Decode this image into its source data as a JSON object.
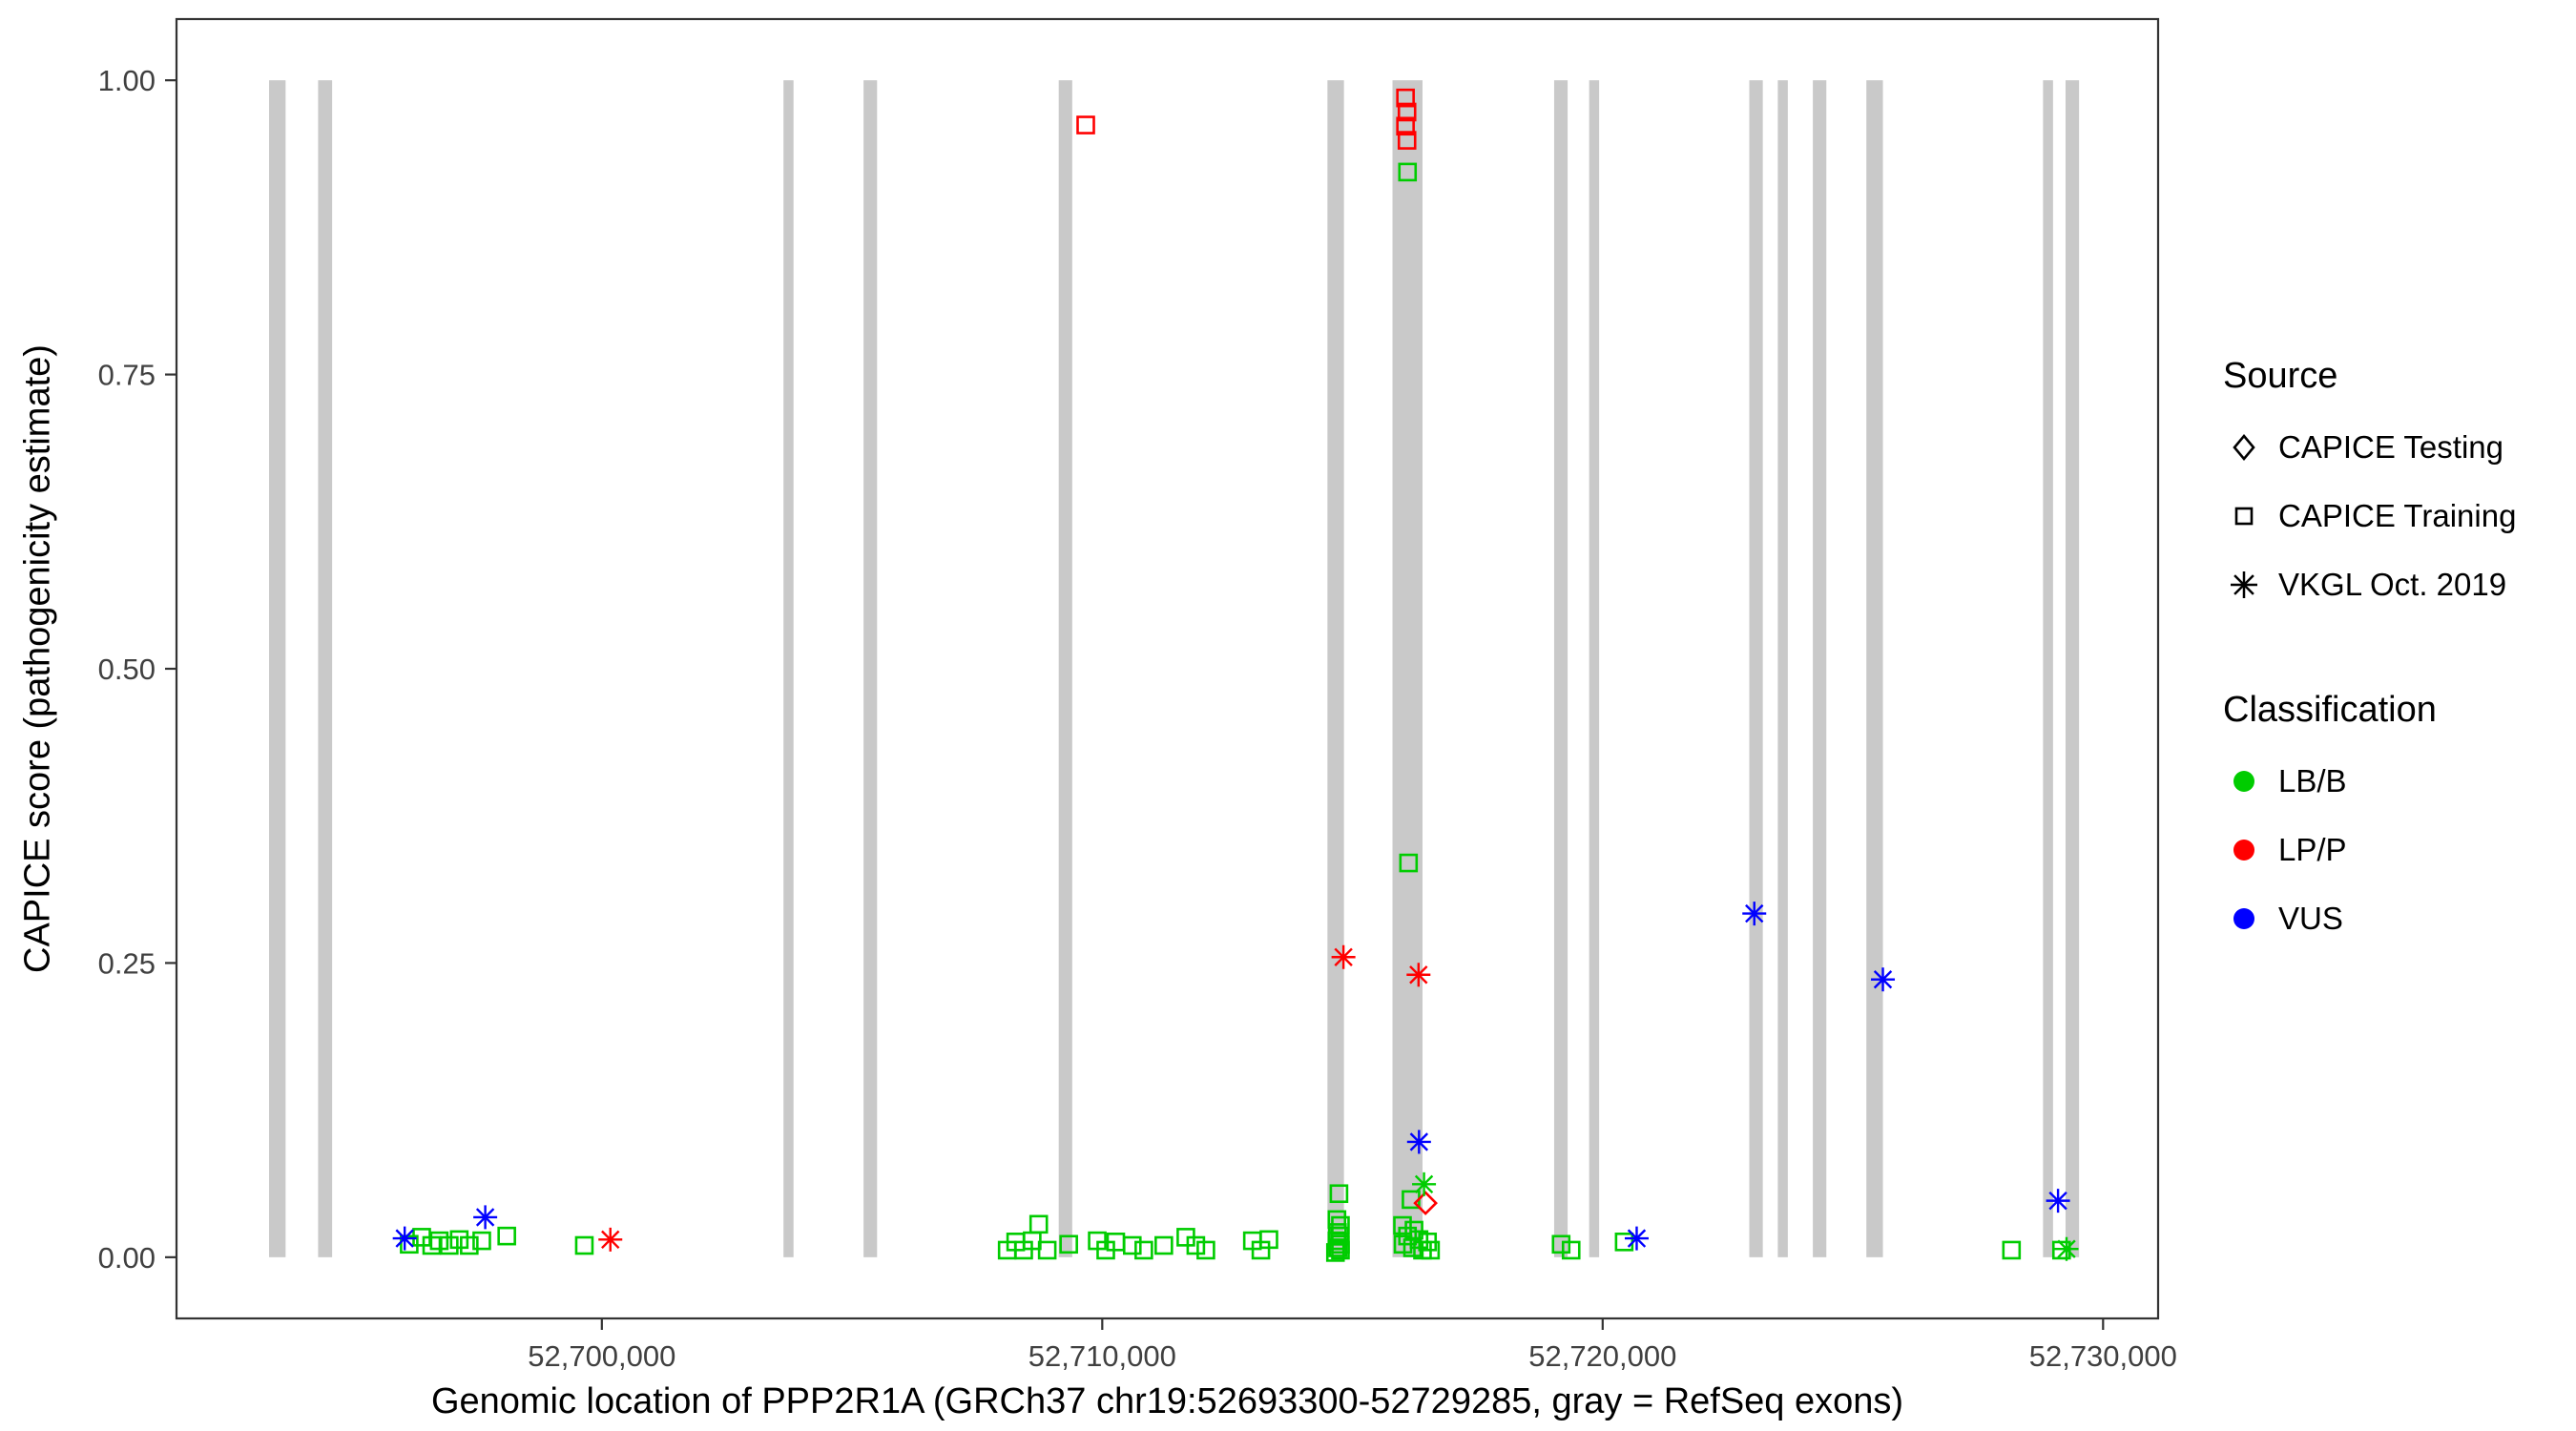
{
  "chart_data": {
    "type": "scatter",
    "title": "",
    "xlabel": "Genomic location of PPP2R1A (GRCh37 chr19:52693300-52729285, gray = RefSeq exons)",
    "ylabel": "CAPICE score (pathogenicity estimate)",
    "grid": "off",
    "legend_position": "right",
    "x_axis": {
      "domain": [
        52691500,
        52731100
      ],
      "ticks": [
        {
          "value": 52700000,
          "label": "52,700,000"
        },
        {
          "value": 52710000,
          "label": "52,710,000"
        },
        {
          "value": 52720000,
          "label": "52,720,000"
        },
        {
          "value": 52730000,
          "label": "52,730,000"
        }
      ]
    },
    "y_axis": {
      "domain": [
        -0.052,
        1.052
      ],
      "ticks": [
        {
          "value": 0.0,
          "label": "0.00"
        },
        {
          "value": 0.25,
          "label": "0.25"
        },
        {
          "value": 0.5,
          "label": "0.50"
        },
        {
          "value": 0.75,
          "label": "0.75"
        },
        {
          "value": 1.0,
          "label": "1.00"
        }
      ]
    },
    "colors": {
      "exon": "#c9c9c9",
      "panel_border": "#333333",
      "tick_text": "#404040",
      "lb_b": "#00cc00",
      "lp_p": "#ff0000",
      "vus": "#0000ff"
    },
    "exons_note": "gray = RefSeq exons",
    "exons": [
      [
        52693350,
        52693680
      ],
      [
        52694330,
        52694610
      ],
      [
        52703630,
        52703830
      ],
      [
        52705230,
        52705500
      ],
      [
        52709130,
        52709400
      ],
      [
        52714500,
        52714830
      ],
      [
        52715800,
        52716400
      ],
      [
        52719030,
        52719300
      ],
      [
        52719730,
        52719930
      ],
      [
        52722930,
        52723200
      ],
      [
        52723500,
        52723700
      ],
      [
        52724200,
        52724470
      ],
      [
        52725270,
        52725600
      ],
      [
        52728800,
        52729000
      ],
      [
        52729250,
        52729520
      ]
    ],
    "series": [
      {
        "name": "LB/B - CAPICE Training",
        "classification": "LB/B",
        "source": "CAPICE Training",
        "shape": "square",
        "color": "#00cc00",
        "points": [
          [
            52696150,
            0.011
          ],
          [
            52696400,
            0.017
          ],
          [
            52696600,
            0.01
          ],
          [
            52696750,
            0.014
          ],
          [
            52696950,
            0.01
          ],
          [
            52697150,
            0.015
          ],
          [
            52697350,
            0.01
          ],
          [
            52697600,
            0.014
          ],
          [
            52698100,
            0.018
          ],
          [
            52699650,
            0.01
          ],
          [
            52708100,
            0.006
          ],
          [
            52708270,
            0.013
          ],
          [
            52708430,
            0.006
          ],
          [
            52708600,
            0.014
          ],
          [
            52708730,
            0.028
          ],
          [
            52708900,
            0.006
          ],
          [
            52709330,
            0.011
          ],
          [
            52709900,
            0.014
          ],
          [
            52710070,
            0.006
          ],
          [
            52710270,
            0.013
          ],
          [
            52710600,
            0.01
          ],
          [
            52710830,
            0.006
          ],
          [
            52711230,
            0.01
          ],
          [
            52711670,
            0.017
          ],
          [
            52711870,
            0.01
          ],
          [
            52712070,
            0.006
          ],
          [
            52713000,
            0.014
          ],
          [
            52713170,
            0.006
          ],
          [
            52713330,
            0.015
          ],
          [
            52714730,
            0.054
          ],
          [
            52714690,
            0.032
          ],
          [
            52714760,
            0.027
          ],
          [
            52714700,
            0.021
          ],
          [
            52714750,
            0.018
          ],
          [
            52714690,
            0.014
          ],
          [
            52714760,
            0.011
          ],
          [
            52714710,
            0.008
          ],
          [
            52714760,
            0.006
          ],
          [
            52714660,
            0.004
          ],
          [
            52716170,
            0.049
          ],
          [
            52716000,
            0.027
          ],
          [
            52716230,
            0.023
          ],
          [
            52716100,
            0.018
          ],
          [
            52716330,
            0.015
          ],
          [
            52716010,
            0.011
          ],
          [
            52716200,
            0.008
          ],
          [
            52716400,
            0.006
          ],
          [
            52716500,
            0.013
          ],
          [
            52716560,
            0.006
          ],
          [
            52716100,
            0.922
          ],
          [
            52716120,
            0.335
          ],
          [
            52719170,
            0.011
          ],
          [
            52719370,
            0.006
          ],
          [
            52720430,
            0.013
          ],
          [
            52728170,
            0.006
          ],
          [
            52729170,
            0.006
          ]
        ]
      },
      {
        "name": "LP/P - CAPICE Training",
        "classification": "LP/P",
        "source": "CAPICE Training",
        "shape": "square",
        "color": "#ff0000",
        "points": [
          [
            52709670,
            0.962
          ],
          [
            52716060,
            0.985
          ],
          [
            52716090,
            0.973
          ],
          [
            52716060,
            0.961
          ],
          [
            52716090,
            0.949
          ]
        ]
      },
      {
        "name": "LP/P - CAPICE Testing",
        "classification": "LP/P",
        "source": "CAPICE Testing",
        "shape": "diamond",
        "color": "#ff0000",
        "points": [
          [
            52716460,
            0.046
          ]
        ]
      },
      {
        "name": "LB/B - VKGL Oct. 2019",
        "classification": "LB/B",
        "source": "VKGL Oct. 2019",
        "shape": "asterisk",
        "color": "#00cc00",
        "points": [
          [
            52716430,
            0.062
          ],
          [
            52729270,
            0.007
          ]
        ]
      },
      {
        "name": "LP/P - VKGL Oct. 2019",
        "classification": "LP/P",
        "source": "VKGL Oct. 2019",
        "shape": "asterisk",
        "color": "#ff0000",
        "points": [
          [
            52714820,
            0.255
          ],
          [
            52716320,
            0.24
          ],
          [
            52700170,
            0.015
          ]
        ]
      },
      {
        "name": "VUS - VKGL Oct. 2019",
        "classification": "VUS",
        "source": "VKGL Oct. 2019",
        "shape": "asterisk",
        "color": "#0000ff",
        "points": [
          [
            52723030,
            0.292
          ],
          [
            52725600,
            0.236
          ],
          [
            52716330,
            0.098
          ],
          [
            52729100,
            0.048
          ],
          [
            52697670,
            0.034
          ],
          [
            52696060,
            0.016
          ],
          [
            52720680,
            0.016
          ]
        ]
      }
    ],
    "legend": {
      "source": {
        "title": "Source",
        "items": [
          {
            "label": "CAPICE Testing",
            "shape": "diamond"
          },
          {
            "label": "CAPICE Training",
            "shape": "square"
          },
          {
            "label": "VKGL Oct. 2019",
            "shape": "asterisk"
          }
        ]
      },
      "classification": {
        "title": "Classification",
        "items": [
          {
            "label": "LB/B",
            "color": "#00cc00"
          },
          {
            "label": "LP/P",
            "color": "#ff0000"
          },
          {
            "label": "VUS",
            "color": "#0000ff"
          }
        ]
      }
    }
  }
}
